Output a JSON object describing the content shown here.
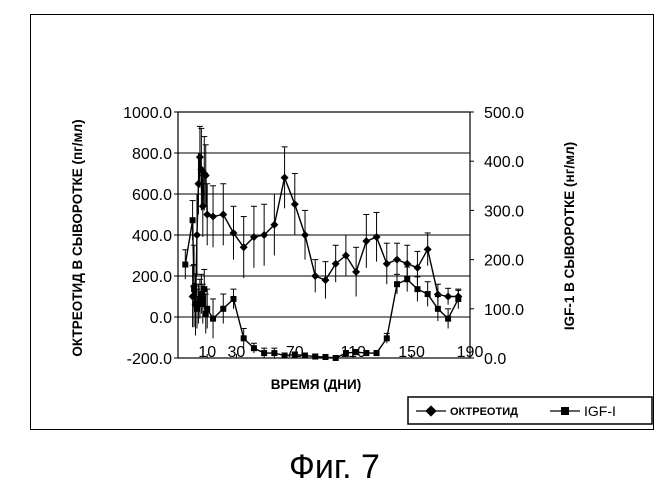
{
  "caption": "Фиг. 7",
  "chart_data": {
    "type": "line",
    "xlabel": "ВРЕМЯ (ДНИ)",
    "ylabel_left": "ОКТРЕОТИД В СЫВОРОТКЕ (пг/мл)",
    "ylabel_right": "IGF-1 В СЫВОРОТКЕ (нг/мл)",
    "x_ticks": [
      "10",
      "30",
      "70",
      "110",
      "150",
      "190"
    ],
    "y_left_ticks": [
      "-200.0",
      "0.0",
      "200.0",
      "400.0",
      "600.0",
      "800.0",
      "1000.0"
    ],
    "y_right_ticks": [
      "0.0",
      "100.0",
      "200.0",
      "300.0",
      "400.0",
      "500.0"
    ],
    "xlim": [
      -10,
      190
    ],
    "ylim_left": [
      -200,
      1000
    ],
    "ylim_right": [
      0,
      500
    ],
    "grid": "horizontal",
    "legend_position": "bottom-right",
    "series": [
      {
        "name": "ОКТРЕОТИД",
        "axis": "left",
        "marker": "diamond",
        "x": [
          0,
          1,
          2,
          3,
          4,
          5,
          6,
          7,
          8,
          9,
          10,
          14,
          21,
          28,
          35,
          42,
          49,
          56,
          63,
          70,
          77,
          84,
          91,
          98,
          105,
          112,
          119,
          126,
          133,
          140,
          147,
          154,
          161,
          168,
          175,
          182
        ],
        "y": [
          100,
          150,
          60,
          400,
          650,
          780,
          720,
          540,
          700,
          690,
          500,
          490,
          500,
          410,
          340,
          390,
          400,
          450,
          680,
          550,
          400,
          200,
          180,
          260,
          300,
          220,
          370,
          390,
          260,
          280,
          260,
          240,
          330,
          110,
          100,
          100
        ],
        "err": [
          150,
          200,
          150,
          200,
          150,
          150,
          200,
          150,
          180,
          150,
          150,
          150,
          150,
          130,
          150,
          150,
          150,
          150,
          150,
          150,
          120,
          80,
          90,
          90,
          100,
          120,
          130,
          120,
          100,
          80,
          90,
          80,
          80,
          50,
          40,
          30
        ]
      },
      {
        "name": "IGF-I",
        "axis": "right",
        "marker": "square",
        "x": [
          -5,
          0,
          1,
          2,
          3,
          4,
          5,
          6,
          7,
          8,
          9,
          10,
          14,
          21,
          28,
          35,
          42,
          49,
          56,
          63,
          70,
          77,
          84,
          91,
          98,
          105,
          112,
          119,
          126,
          133,
          140,
          147,
          154,
          161,
          168,
          175,
          182
        ],
        "y": [
          190,
          280,
          140,
          110,
          100,
          110,
          120,
          130,
          110,
          140,
          90,
          100,
          80,
          100,
          120,
          40,
          20,
          10,
          10,
          5,
          7,
          5,
          3,
          2,
          0,
          10,
          12,
          10,
          10,
          40,
          150,
          160,
          140,
          130,
          100,
          80,
          120
        ],
        "err": [
          30,
          40,
          50,
          40,
          40,
          40,
          40,
          40,
          40,
          40,
          40,
          40,
          40,
          30,
          20,
          20,
          10,
          10,
          10,
          5,
          5,
          5,
          5,
          5,
          5,
          5,
          5,
          5,
          5,
          10,
          20,
          25,
          25,
          25,
          25,
          20,
          20
        ]
      }
    ]
  }
}
